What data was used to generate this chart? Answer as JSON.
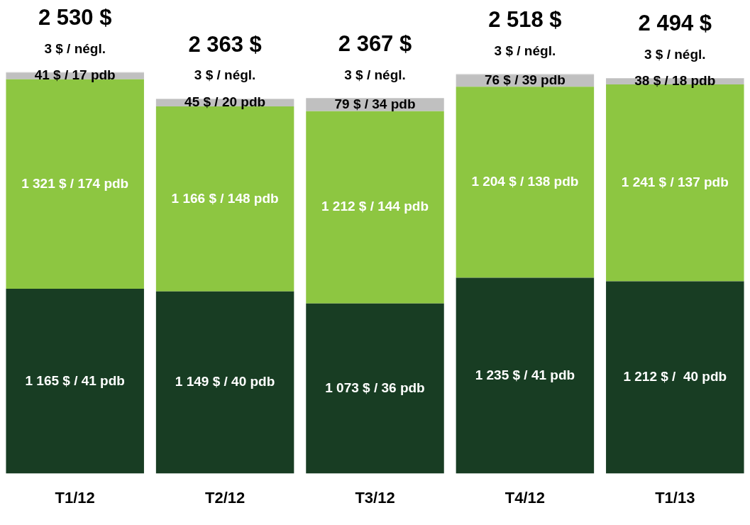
{
  "chart_data": {
    "type": "bar",
    "stacked": true,
    "categories": [
      "T1/12",
      "T2/12",
      "T3/12",
      "T4/12",
      "T1/13"
    ],
    "series": [
      {
        "color": "#183d23",
        "values": [
          1165,
          1149,
          1073,
          1235,
          1212
        ],
        "value_labels": [
          "1 165 $ / 41 pdb",
          "1 149 $ / 40 pdb",
          "1 073 $ / 36 pdb",
          "1 235 $ / 41 pdb",
          "1 212 $ /  40 pdb"
        ]
      },
      {
        "color": "#8dc641",
        "values": [
          1321,
          1166,
          1212,
          1204,
          1241
        ],
        "value_labels": [
          "1 321 $ / 174 pdb",
          "1 166 $ / 148 pdb",
          "1 212 $ / 144 pdb",
          "1 204 $ / 138 pdb",
          "1 241 $ / 137 pdb"
        ]
      },
      {
        "color": "#c0c0c0",
        "values": [
          41,
          45,
          79,
          76,
          38
        ],
        "value_labels": [
          "41 $ / 17 pdb",
          "45 $ / 20 pdb",
          "79 $ / 34 pdb",
          "76 $ / 39 pdb",
          "38 $ / 18 pdb"
        ]
      },
      {
        "color": "#c0c0c0",
        "values": [
          3,
          3,
          3,
          3,
          3
        ],
        "value_labels": [
          "3 $ / négl.",
          "3 $ / négl.",
          "3 $ / négl.",
          "3 $ / négl.",
          "3 $ / négl."
        ]
      }
    ],
    "totals": [
      "2 530 $",
      "2 363 $",
      "2 367 $",
      "2 518 $",
      "2 494 $"
    ],
    "grid": false,
    "legend": false
  }
}
